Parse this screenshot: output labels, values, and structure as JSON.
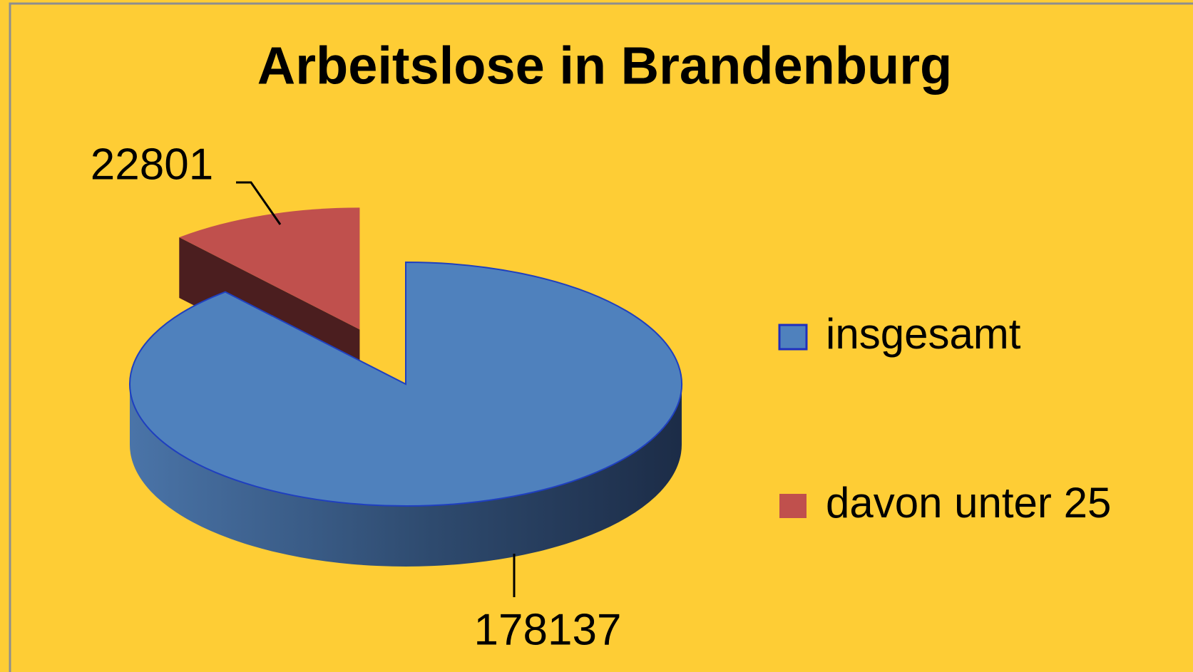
{
  "chart_data": {
    "type": "pie3d",
    "title": "Arbeitslose in Brandenburg",
    "categories": [
      "insgesamt",
      "davon unter 25"
    ],
    "values": [
      178137,
      22801
    ],
    "colors": [
      "#4f81bd",
      "#c0504d"
    ],
    "legend": "right"
  }
}
